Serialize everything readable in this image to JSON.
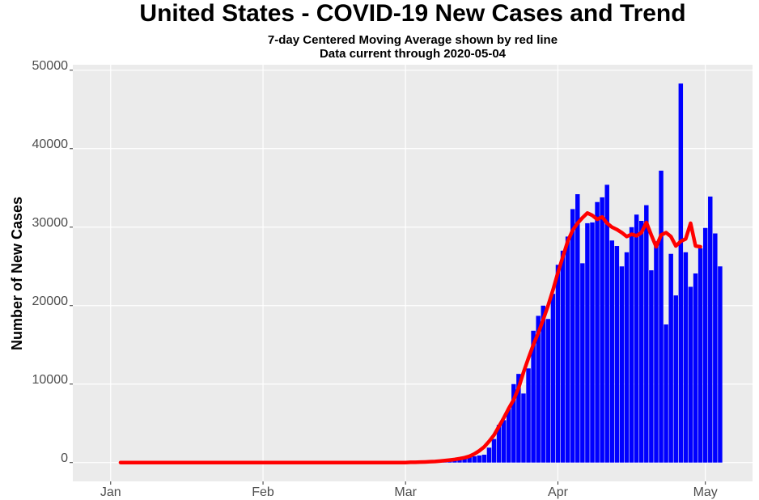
{
  "chart_data": {
    "type": "bar",
    "title": "United States - COVID-19 New Cases and Trend",
    "subtitle": [
      "7-day Centered Moving Average shown by red line",
      "Data current through 2020-05-04"
    ],
    "y_label": "Number of New Cases",
    "x": [
      2,
      3,
      4,
      5,
      6,
      7,
      8,
      9,
      10,
      11,
      12,
      13,
      14,
      15,
      16,
      17,
      18,
      19,
      20,
      21,
      22,
      23,
      24,
      25,
      26,
      27,
      28,
      29,
      30,
      31,
      32,
      33,
      34,
      35,
      36,
      37,
      38,
      39,
      40,
      41,
      42,
      43,
      44,
      45,
      46,
      47,
      48,
      49,
      50,
      51,
      52,
      53,
      54,
      55,
      56,
      57,
      58,
      59,
      60,
      61,
      62,
      63,
      64,
      65,
      66,
      67,
      68,
      69,
      70,
      71,
      72,
      73,
      74,
      75,
      76,
      77,
      78,
      79,
      80,
      81,
      82,
      83,
      84,
      85,
      86,
      87,
      88,
      89,
      90,
      91,
      92,
      93,
      94,
      95,
      96,
      97,
      98,
      99,
      100,
      101,
      102,
      103,
      104,
      105,
      106,
      107,
      108,
      109,
      110,
      111,
      112,
      113,
      114,
      115,
      116,
      117,
      118,
      119,
      120,
      121,
      122,
      123,
      124
    ],
    "series": [
      {
        "type": "bar",
        "color": "#0000ff",
        "values": [
          0,
          0,
          0,
          0,
          0,
          0,
          0,
          0,
          0,
          0,
          0,
          0,
          0,
          0,
          0,
          0,
          0,
          0,
          0,
          0,
          0,
          0,
          0,
          0,
          0,
          0,
          0,
          0,
          0,
          0,
          0,
          0,
          0,
          0,
          0,
          0,
          0,
          0,
          0,
          0,
          0,
          0,
          0,
          0,
          0,
          0,
          0,
          0,
          0,
          0,
          0,
          0,
          0,
          0,
          0,
          0,
          0,
          0,
          0,
          20,
          30,
          40,
          60,
          80,
          100,
          130,
          170,
          270,
          380,
          450,
          550,
          700,
          800,
          900,
          1000,
          1900,
          3000,
          4800,
          5400,
          6900,
          10000,
          11300,
          8800,
          12000,
          16800,
          18700,
          20000,
          18300,
          21500,
          25200,
          27000,
          28800,
          32300,
          34200,
          25400,
          30500,
          30600,
          33200,
          33800,
          35400,
          28300,
          27600,
          25000,
          26800,
          30000,
          31600,
          30800,
          32800,
          24500,
          28200,
          37200,
          17600,
          26600,
          21300,
          48300,
          26800,
          22400,
          24100,
          27300,
          29900,
          33900,
          29200,
          25000
        ]
      },
      {
        "type": "line",
        "color": "#ff0000",
        "values": [
          0,
          0,
          0,
          0,
          0,
          0,
          0,
          0,
          0,
          0,
          0,
          0,
          0,
          0,
          0,
          0,
          0,
          0,
          0,
          0,
          0,
          0,
          0,
          0,
          0,
          0,
          0,
          0,
          0,
          0,
          0,
          0,
          0,
          0,
          0,
          0,
          0,
          0,
          0,
          0,
          0,
          0,
          0,
          0,
          0,
          0,
          0,
          0,
          0,
          0,
          0,
          0,
          0,
          0,
          0,
          0,
          0,
          0,
          0,
          30,
          40,
          60,
          80,
          110,
          140,
          190,
          250,
          320,
          400,
          500,
          620,
          800,
          1100,
          1500,
          2000,
          2700,
          3500,
          4600,
          5700,
          6900,
          8000,
          9500,
          11500,
          13300,
          15000,
          16500,
          18200,
          20000,
          22000,
          24200,
          26200,
          28200,
          29600,
          30500,
          31200,
          31800,
          31500,
          31000,
          31300,
          30500,
          30000,
          29700,
          29300,
          28800,
          29100,
          28900,
          29300,
          30600,
          29000,
          27500,
          29000,
          29300,
          28800,
          27600,
          28200,
          28500,
          30500,
          27600,
          27500,
          null,
          null,
          null,
          null
        ]
      }
    ],
    "xlim": [
      -7.7,
      130.6
    ],
    "xticks": [
      {
        "value": 0,
        "label": "Jan"
      },
      {
        "value": 31,
        "label": "Feb"
      },
      {
        "value": 60,
        "label": "Mar"
      },
      {
        "value": 91,
        "label": "Apr"
      },
      {
        "value": 121,
        "label": "May"
      }
    ],
    "ylim": [
      -2400,
      50700
    ],
    "yticks": [
      0,
      10000,
      20000,
      30000,
      40000,
      50000
    ],
    "grid": true
  }
}
